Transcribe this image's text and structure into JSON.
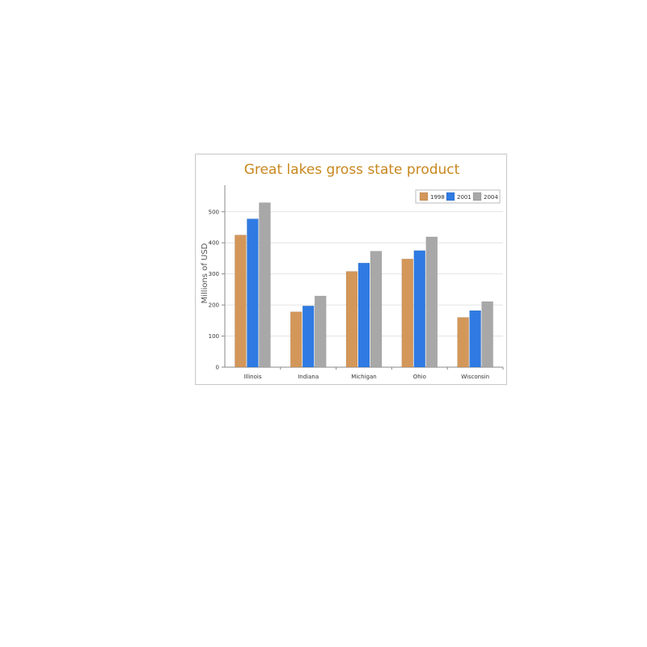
{
  "chart_data": {
    "type": "bar",
    "title": "Great lakes gross state product",
    "xlabel": "",
    "ylabel": "Millions of USD",
    "categories": [
      "Illinois",
      "Indiana",
      "Michigan",
      "Ohio",
      "Wisconsin"
    ],
    "series": [
      {
        "name": "1998",
        "color": "#d4975a",
        "values": [
          425,
          178,
          308,
          348,
          160
        ]
      },
      {
        "name": "2001",
        "color": "#2f7be3",
        "values": [
          477,
          197,
          335,
          375,
          182
        ]
      },
      {
        "name": "2004",
        "color": "#a8a8a8",
        "values": [
          529,
          229,
          373,
          419,
          211
        ]
      }
    ],
    "ylim": [
      0,
      580
    ],
    "yticks": [
      0,
      100,
      200,
      300,
      400,
      500
    ],
    "grid": true,
    "legend": "top-right"
  }
}
